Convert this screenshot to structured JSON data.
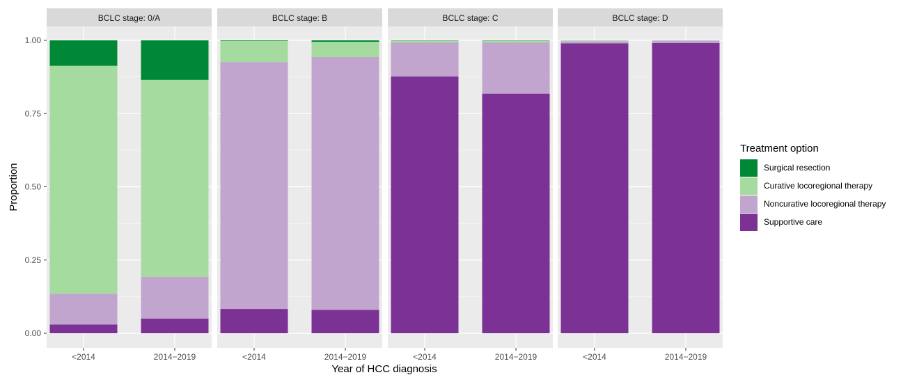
{
  "chart_data": {
    "type": "bar",
    "stacked": true,
    "faceted": true,
    "xlabel": "Year of HCC diagnosis",
    "ylabel": "Proportion",
    "ylim": [
      0,
      1.05
    ],
    "yticks": [
      0.0,
      0.25,
      0.5,
      0.75,
      1.0
    ],
    "ytick_labels": [
      "0.00",
      "0.25",
      "0.50",
      "0.75",
      "1.00"
    ],
    "categories": [
      "<2014",
      "2014−2019"
    ],
    "grid": true,
    "legend": {
      "title": "Treatment option",
      "position": "right",
      "entries": [
        "Surgical resection",
        "Curative locoregional therapy",
        "Noncurative locoregional therapy",
        "Supportive care"
      ]
    },
    "series_colors": {
      "Surgical resection": "#008837",
      "Curative locoregional therapy": "#a6dba0",
      "Noncurative locoregional therapy": "#c2a5cf",
      "Supportive care": "#7b3294"
    },
    "facets": [
      {
        "title": "BCLC stage: 0/A",
        "series": [
          {
            "name": "Supportive care",
            "values": [
              0.03,
              0.05
            ]
          },
          {
            "name": "Noncurative locoregional therapy",
            "values": [
              0.105,
              0.143
            ]
          },
          {
            "name": "Curative locoregional therapy",
            "values": [
              0.778,
              0.672
            ]
          },
          {
            "name": "Surgical resection",
            "values": [
              0.087,
              0.135
            ]
          }
        ]
      },
      {
        "title": "BCLC stage: B",
        "series": [
          {
            "name": "Supportive care",
            "values": [
              0.083,
              0.08
            ]
          },
          {
            "name": "Noncurative locoregional therapy",
            "values": [
              0.843,
              0.863
            ]
          },
          {
            "name": "Curative locoregional therapy",
            "values": [
              0.072,
              0.052
            ]
          },
          {
            "name": "Surgical resection",
            "values": [
              0.002,
              0.005
            ]
          }
        ]
      },
      {
        "title": "BCLC stage: C",
        "series": [
          {
            "name": "Supportive care",
            "values": [
              0.877,
              0.818
            ]
          },
          {
            "name": "Noncurative locoregional therapy",
            "values": [
              0.116,
              0.175
            ]
          },
          {
            "name": "Curative locoregional therapy",
            "values": [
              0.006,
              0.006
            ]
          },
          {
            "name": "Surgical resection",
            "values": [
              0.001,
              0.001
            ]
          }
        ]
      },
      {
        "title": "BCLC stage: D",
        "series": [
          {
            "name": "Supportive care",
            "values": [
              0.99,
              0.991
            ]
          },
          {
            "name": "Noncurative locoregional therapy",
            "values": [
              0.007,
              0.008
            ]
          },
          {
            "name": "Curative locoregional therapy",
            "values": [
              0.003,
              0.001
            ]
          },
          {
            "name": "Surgical resection",
            "values": [
              0.0,
              0.0
            ]
          }
        ]
      }
    ]
  }
}
